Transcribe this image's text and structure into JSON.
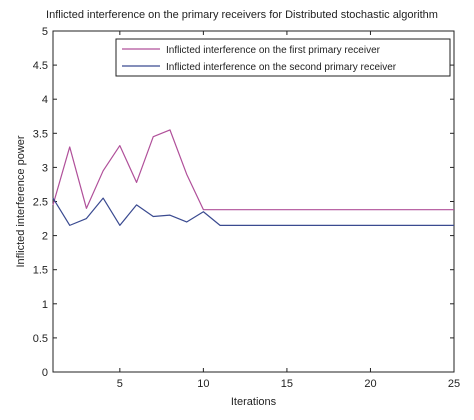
{
  "chart_data": {
    "type": "line",
    "title": "Inflicted interference on the primary receivers for Distributed stochastic algorithm",
    "xlabel": "Iterations",
    "ylabel": "Inflicted interference power",
    "xlim": [
      1,
      25
    ],
    "ylim": [
      0,
      5
    ],
    "xticks": [
      5,
      10,
      15,
      20,
      25
    ],
    "yticks": [
      0,
      0.5,
      1,
      1.5,
      2,
      2.5,
      3,
      3.5,
      4,
      4.5,
      5
    ],
    "grid": false,
    "legend": {
      "placement": "top-right"
    },
    "series": [
      {
        "name": "Inflicted interference on the first primary receiver",
        "color": "#b0509a",
        "x": [
          1,
          2,
          3,
          4,
          5,
          6,
          7,
          8,
          9,
          10,
          11,
          12,
          13,
          14,
          15,
          16,
          17,
          18,
          19,
          20,
          21,
          22,
          23,
          24,
          25
        ],
        "values": [
          2.45,
          3.3,
          2.4,
          2.95,
          3.32,
          2.78,
          3.45,
          3.55,
          2.9,
          2.38,
          2.38,
          2.38,
          2.38,
          2.38,
          2.38,
          2.38,
          2.38,
          2.38,
          2.38,
          2.38,
          2.38,
          2.38,
          2.38,
          2.38,
          2.38
        ]
      },
      {
        "name": "Inflicted interference on the second primary receiver",
        "color": "#3a4a90",
        "x": [
          1,
          2,
          3,
          4,
          5,
          6,
          7,
          8,
          9,
          10,
          11,
          12,
          13,
          14,
          15,
          16,
          17,
          18,
          19,
          20,
          21,
          22,
          23,
          24,
          25
        ],
        "values": [
          2.55,
          2.15,
          2.25,
          2.55,
          2.15,
          2.45,
          2.28,
          2.3,
          2.2,
          2.35,
          2.15,
          2.15,
          2.15,
          2.15,
          2.15,
          2.15,
          2.15,
          2.15,
          2.15,
          2.15,
          2.15,
          2.15,
          2.15,
          2.15,
          2.15
        ]
      }
    ]
  }
}
